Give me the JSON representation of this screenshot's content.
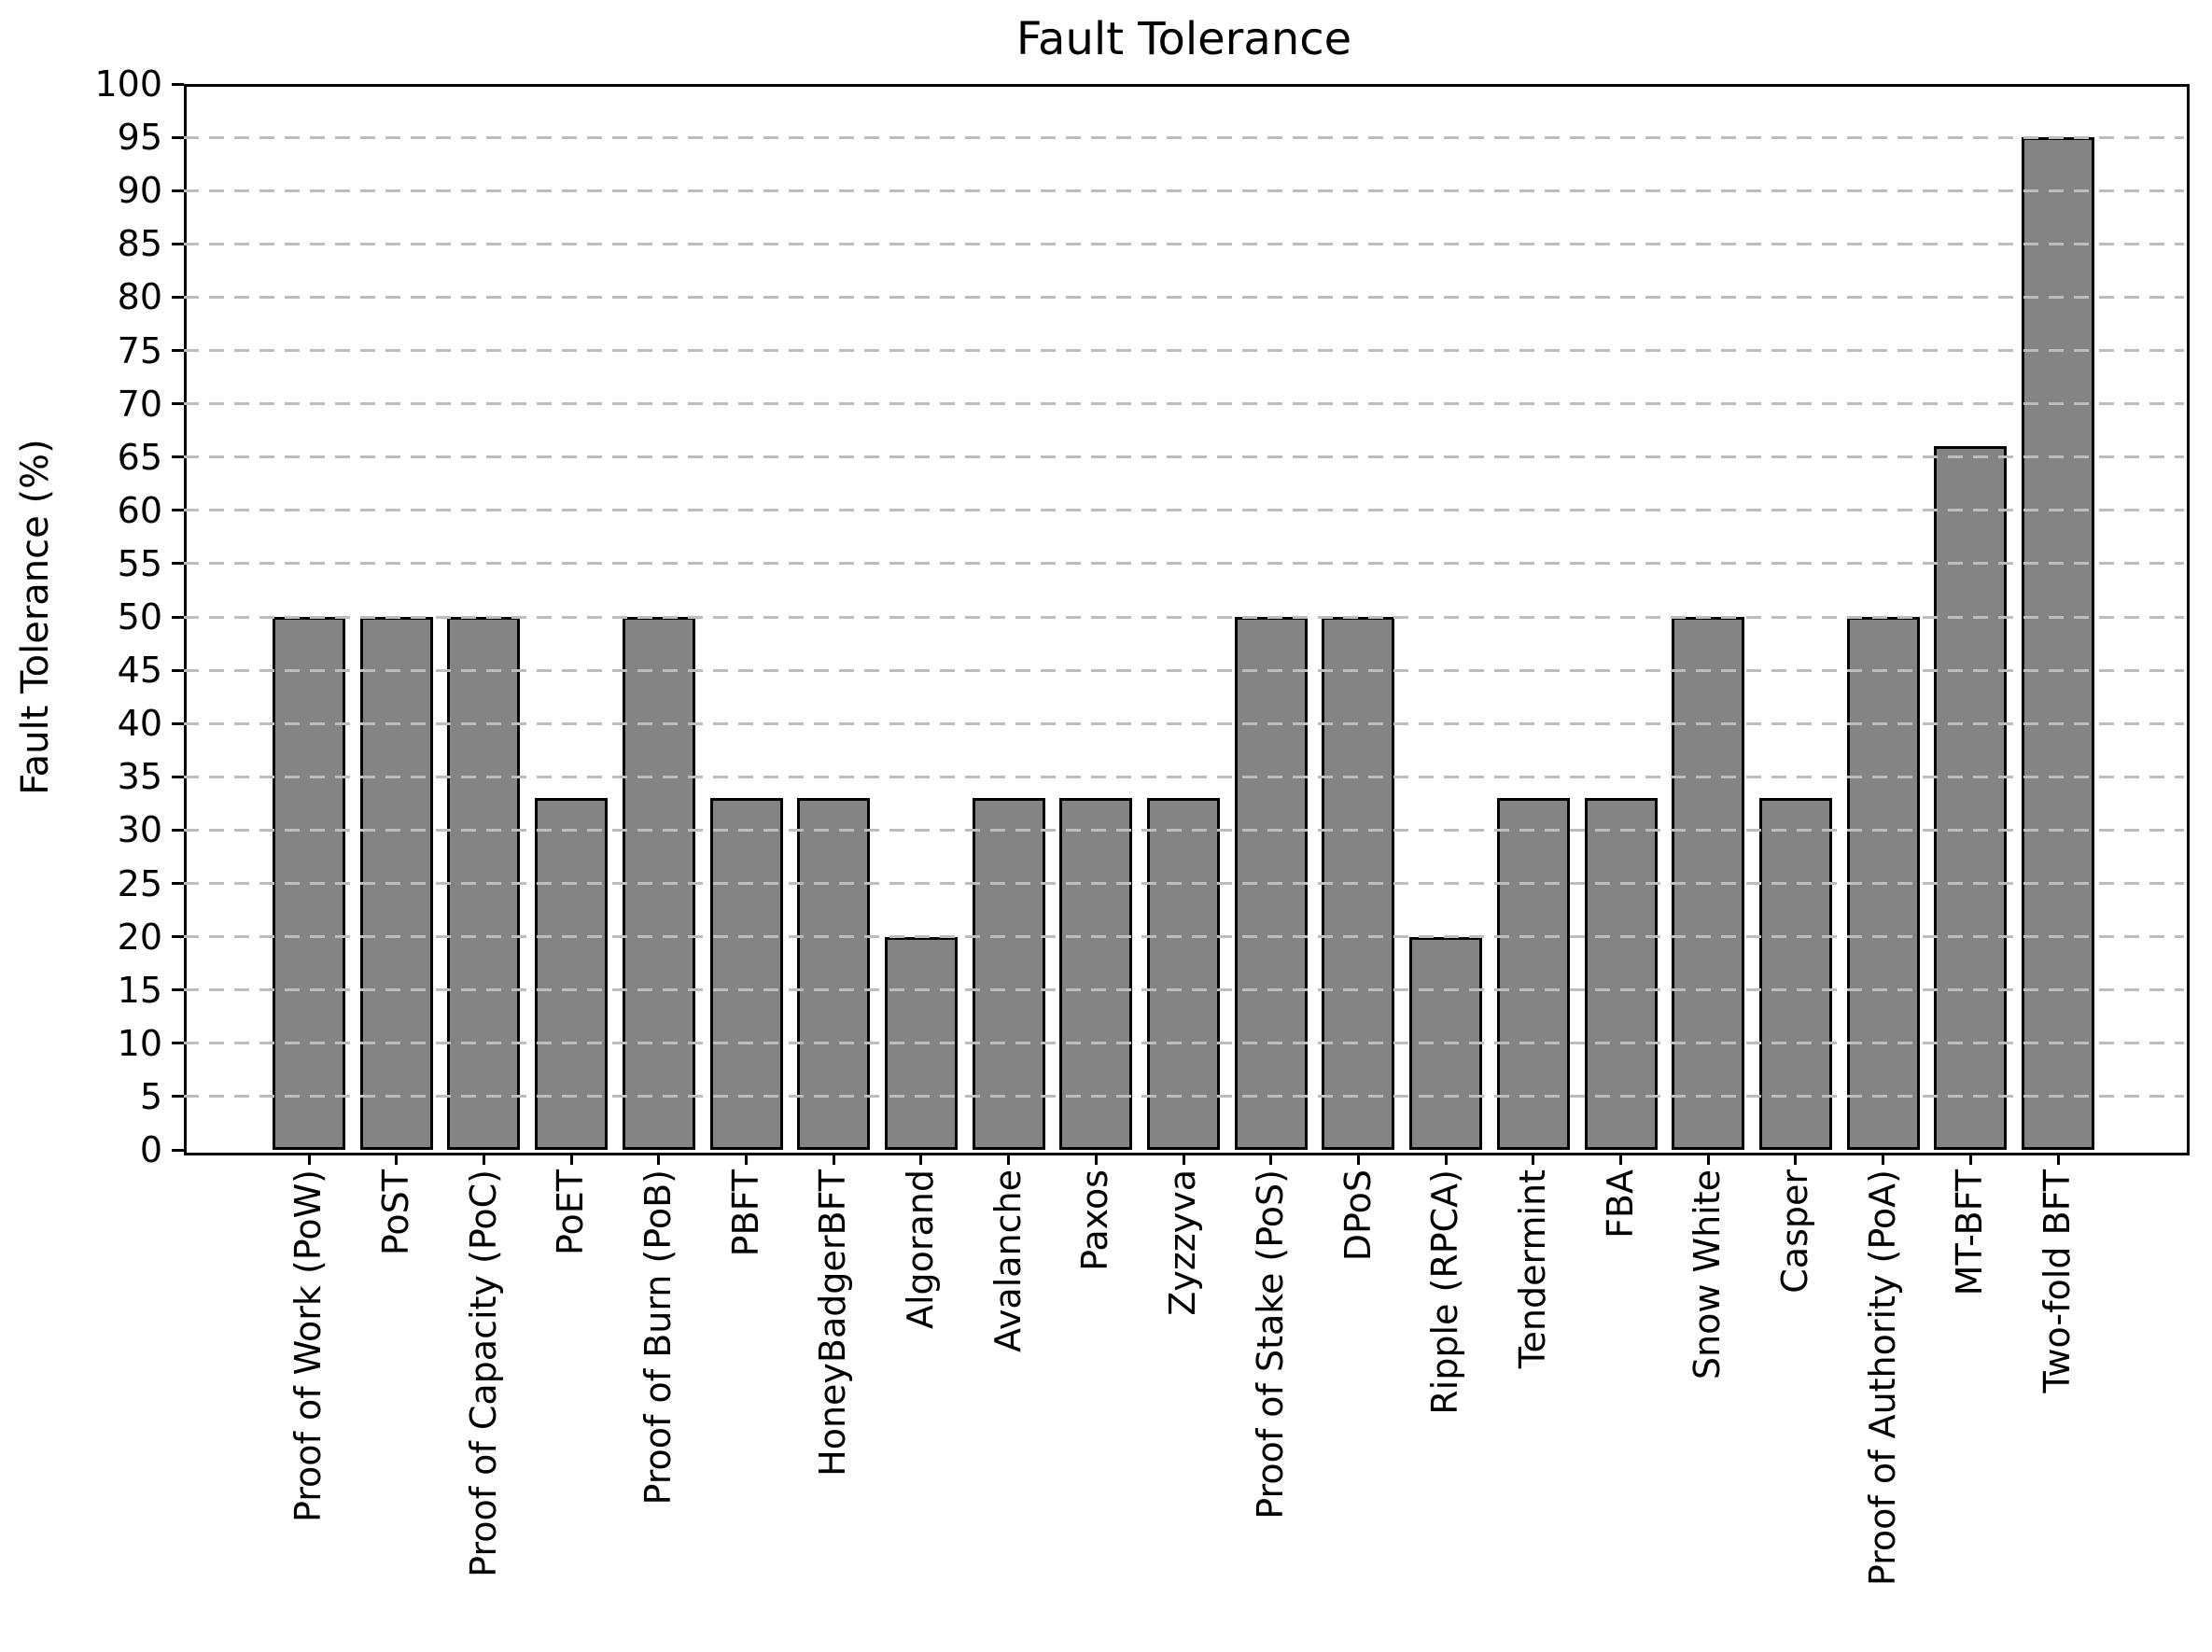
{
  "header": {
    "title": "Fault Tolerance"
  },
  "y_axis": {
    "label": "Fault Tolerance (%)",
    "tick_min": 0,
    "tick_max": 100,
    "tick_step": 5
  },
  "chart_data": {
    "type": "bar",
    "title": "Fault Tolerance",
    "xlabel": "",
    "ylabel": "Fault Tolerance (%)",
    "categories": [
      "Proof of Work (PoW)",
      "PoST",
      "Proof of Capacity (PoC)",
      "PoET",
      "Proof of Burn (PoB)",
      "PBFT",
      "HoneyBadgerBFT",
      "Algorand",
      "Avalanche",
      "Paxos",
      "Zyzzyva",
      "Proof of Stake (PoS)",
      "DPoS",
      "Ripple (RPCA)",
      "Tendermint",
      "FBA",
      "Snow White",
      "Casper",
      "Proof of Authority (PoA)",
      "MT-BFT",
      "Two-fold BFT"
    ],
    "values": [
      50,
      50,
      50,
      33,
      50,
      33,
      33,
      20,
      33,
      33,
      33,
      50,
      50,
      20,
      33,
      33,
      50,
      33,
      50,
      66,
      95
    ],
    "ylim": [
      0,
      100
    ],
    "ytick_step": 5,
    "grid": {
      "axis": "y",
      "style": "dashed",
      "color": "#bdbdbd",
      "drawn_over_bars": true
    },
    "legend": "none",
    "bar_color": "#848484",
    "bar_edge_color": "#000000",
    "background_color": "#ffffff"
  }
}
